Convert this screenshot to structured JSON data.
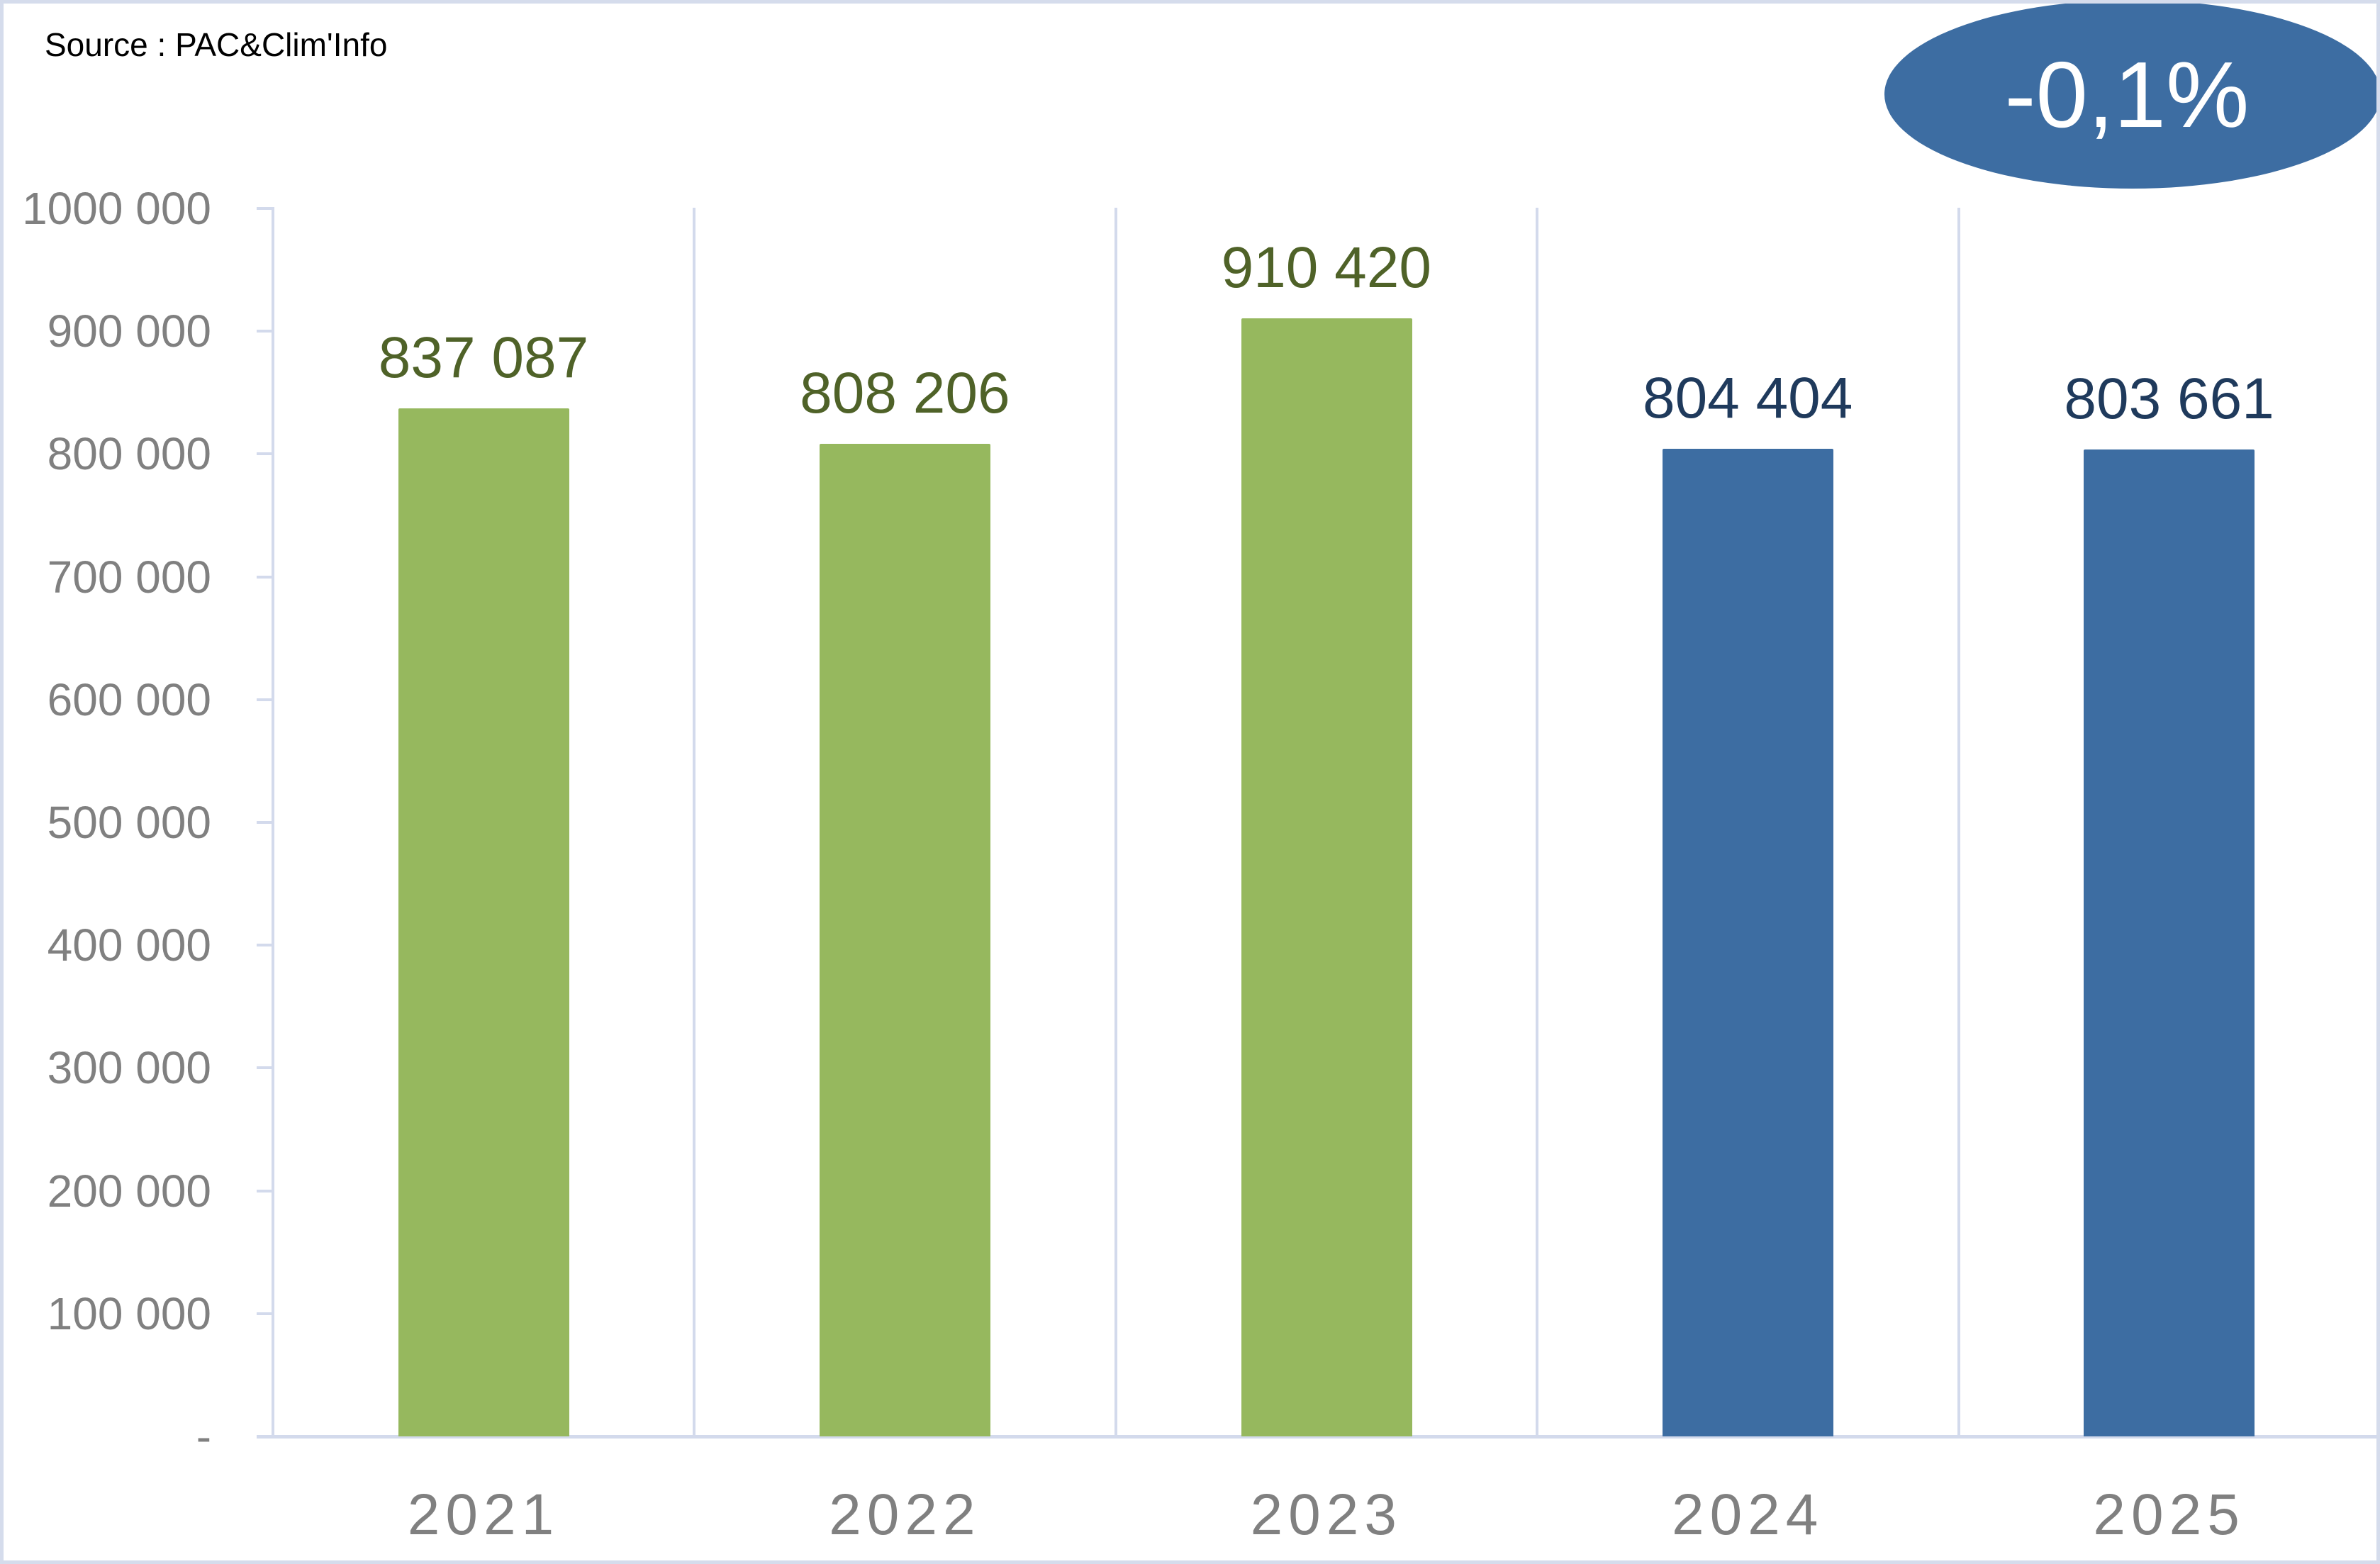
{
  "source": "Source : PAC&Clim'Info",
  "badge": {
    "label": "-0,1%",
    "color": "#3D6DA2",
    "text_color": "#FFFFFF"
  },
  "colors": {
    "bar_green": "#96B85E",
    "bar_blue": "#3D6DA2",
    "label_green": "#4F6228",
    "label_blue": "#1F3A5C",
    "axis": "#D3DAEC",
    "tick_text": "#808080"
  },
  "y_axis": {
    "ticks": [
      "-",
      "100 000",
      "200 000",
      "300 000",
      "400 000",
      "500 000",
      "600 000",
      "700 000",
      "800 000",
      "900 000",
      "1000 000"
    ]
  },
  "bars": [
    {
      "year": "2021",
      "value": 837087,
      "label": "837 087",
      "color": "green"
    },
    {
      "year": "2022",
      "value": 808206,
      "label": "808 206",
      "color": "green"
    },
    {
      "year": "2023",
      "value": 910420,
      "label": "910 420",
      "color": "green"
    },
    {
      "year": "2024",
      "value": 804404,
      "label": "804 404",
      "color": "blue"
    },
    {
      "year": "2025",
      "value": 803661,
      "label": "803 661",
      "color": "blue"
    }
  ],
  "chart_data": {
    "type": "bar",
    "title": "",
    "source": "Source : PAC&Clim'Info",
    "categories": [
      "2021",
      "2022",
      "2023",
      "2024",
      "2025"
    ],
    "values": [
      837087,
      808206,
      910420,
      804404,
      803661
    ],
    "data_labels": [
      "837 087",
      "808 206",
      "910 420",
      "804 404",
      "803 661"
    ],
    "bar_colors": [
      "#96B85E",
      "#96B85E",
      "#96B85E",
      "#3D6DA2",
      "#3D6DA2"
    ],
    "xlabel": "",
    "ylabel": "",
    "ylim": [
      0,
      1000000
    ],
    "yticks": [
      0,
      100000,
      200000,
      300000,
      400000,
      500000,
      600000,
      700000,
      800000,
      900000,
      1000000
    ],
    "ytick_labels": [
      "-",
      "100 000",
      "200 000",
      "300 000",
      "400 000",
      "500 000",
      "600 000",
      "700 000",
      "800 000",
      "900 000",
      "1000 000"
    ],
    "grid": false,
    "legend": null,
    "annotations": [
      {
        "text": "-0,1%",
        "shape": "ellipse",
        "position": "top-right"
      }
    ]
  }
}
